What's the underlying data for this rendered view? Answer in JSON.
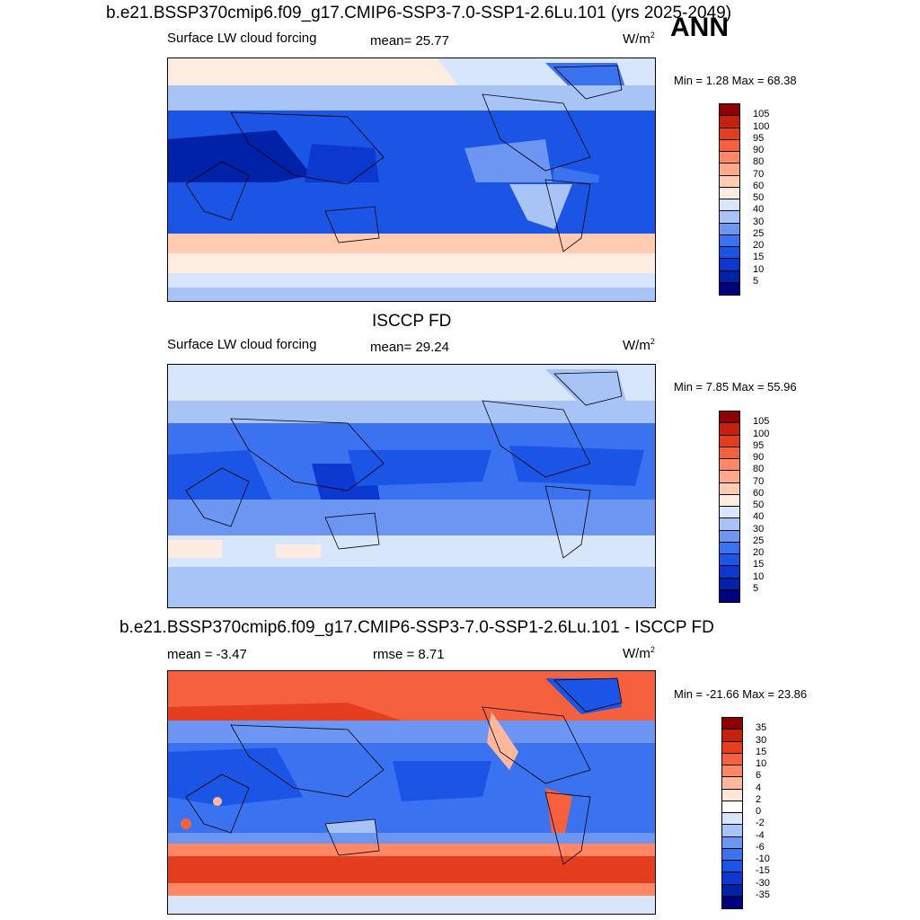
{
  "title": "b.e21.BSSP370cmip6.f09_g17.CMIP6-SSP3-7.0-SSP1-2.6Lu.101 (yrs 2025-2049)",
  "season": "ANN",
  "colors": {
    "abs": [
      "#00007f",
      "#0022a8",
      "#0c38d0",
      "#1a55e6",
      "#3a72f0",
      "#6c96f2",
      "#a8c3f6",
      "#d8e6fb",
      "#ffece0",
      "#ffccb2",
      "#ffa98a",
      "#ff8763",
      "#f5603e",
      "#e53e1f",
      "#c4210e",
      "#8c0000"
    ],
    "diff": [
      "#00007f",
      "#0022a8",
      "#0c38d0",
      "#1a55e6",
      "#3a72f0",
      "#6c96f2",
      "#a8c3f6",
      "#d8e6fb",
      "#ffffff",
      "#ffe5d6",
      "#ffb89c",
      "#ff8763",
      "#f5603e",
      "#e53e1f",
      "#c4210e",
      "#8c0000"
    ]
  },
  "panels": [
    {
      "variable": "Surface LW cloud forcing",
      "stat_text": "mean=  25.77",
      "units_base": "W/m",
      "units_exp": "2",
      "minmax": "Min =   1.28 Max =  68.38",
      "levels": [
        "105",
        "100",
        "95",
        "90",
        "80",
        "70",
        "60",
        "50",
        "40",
        "30",
        "25",
        "20",
        "15",
        "10",
        "5"
      ]
    },
    {
      "heading": "ISCCP FD",
      "variable": "Surface LW cloud forcing",
      "stat_text": "mean=  29.24",
      "units_base": "W/m",
      "units_exp": "2",
      "minmax": "Min =   7.85 Max =  55.96",
      "levels": [
        "105",
        "100",
        "95",
        "90",
        "80",
        "70",
        "60",
        "50",
        "40",
        "30",
        "25",
        "20",
        "15",
        "10",
        "5"
      ]
    },
    {
      "heading": "b.e21.BSSP370cmip6.f09_g17.CMIP6-SSP3-7.0-SSP1-2.6Lu.101 - ISCCP FD",
      "stat_text": "mean =  -3.47",
      "stat2_text": "rmse =   8.71",
      "units_base": "W/m",
      "units_exp": "2",
      "minmax": "Min = -21.66 Max =  23.86",
      "levels": [
        "35",
        "30",
        "15",
        "10",
        "6",
        "4",
        "2",
        "0",
        "-2",
        "-4",
        "-6",
        "-10",
        "-15",
        "-30",
        "-35"
      ]
    }
  ]
}
